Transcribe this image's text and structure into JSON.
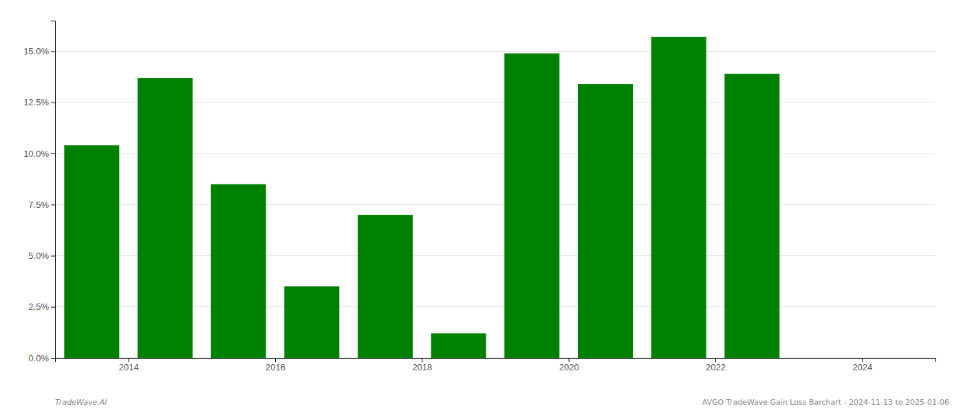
{
  "chart_data": {
    "type": "bar",
    "x": [
      2013.5,
      2014.5,
      2015.5,
      2016.5,
      2017.5,
      2018.5,
      2019.5,
      2020.5,
      2021.5,
      2022.5
    ],
    "values": [
      0.104,
      0.137,
      0.085,
      0.035,
      0.07,
      0.012,
      0.149,
      0.134,
      0.157,
      0.139
    ],
    "color": "#008000",
    "xlim": [
      2013.0,
      2025.0
    ],
    "xticks": [
      2014,
      2016,
      2018,
      2020,
      2022,
      2024
    ],
    "ylim": [
      0,
      0.165
    ],
    "yticks": [
      {
        "value": 0.0,
        "label": "0.0%"
      },
      {
        "value": 0.025,
        "label": "2.5%"
      },
      {
        "value": 0.05,
        "label": "5.0%"
      },
      {
        "value": 0.075,
        "label": "7.5%"
      },
      {
        "value": 0.1,
        "label": "10.0%"
      },
      {
        "value": 0.125,
        "label": "12.5%"
      },
      {
        "value": 0.15,
        "label": "15.0%"
      }
    ],
    "grid": true,
    "annotations": [
      "TradeWave.AI",
      "AVGO TradeWave Gain Loss Barchart - 2024-11-13 to 2025-01-06"
    ]
  }
}
